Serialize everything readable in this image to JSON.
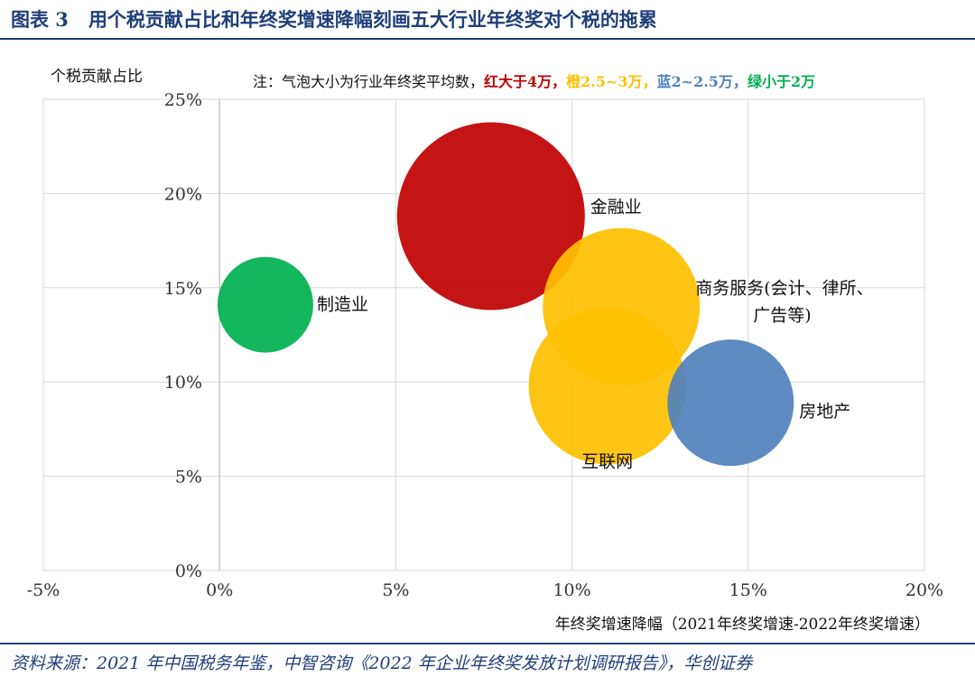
{
  "header": {
    "figure_label": "图表 3",
    "title": "用个税贡献占比和年终奖增速降幅刻画五大行业年终奖对个税的拖累"
  },
  "chart_data": {
    "type": "bubble",
    "ylabel": "个税贡献占比",
    "xlabel": "年终奖增速降幅（2021年终奖增速-2022年终奖增速）",
    "xlim": [
      -5,
      20
    ],
    "ylim": [
      0,
      25
    ],
    "x_ticks": [
      "-5%",
      "0%",
      "5%",
      "10%",
      "15%",
      "20%"
    ],
    "y_ticks": [
      "0%",
      "5%",
      "10%",
      "15%",
      "20%",
      "25%"
    ],
    "grid": true,
    "note": {
      "prefix": "注：气泡大小为行业年终奖平均数，",
      "items": [
        {
          "text": "红大于4万，",
          "color": "#c00000"
        },
        {
          "text": "橙2.5~3万，",
          "color": "#ffc000"
        },
        {
          "text": "蓝2~2.5万，",
          "color": "#4f81bd"
        },
        {
          "text": "绿小于2万",
          "color": "#00b050"
        }
      ]
    },
    "series": [
      {
        "label": "金融业",
        "x": 7.7,
        "y": 18.8,
        "size": 4,
        "color": "#c00000"
      },
      {
        "label": "商务服务(会计、律所、广告等)",
        "label_lines": [
          "商务服务(会计、律所、",
          "广告等)"
        ],
        "x": 11.4,
        "y": 14.0,
        "size": 3,
        "color": "#ffc000"
      },
      {
        "label": "互联网",
        "x": 11.0,
        "y": 9.8,
        "size": 3,
        "color": "#ffc000"
      },
      {
        "label": "房地产",
        "x": 14.5,
        "y": 8.9,
        "size": 2,
        "color": "#4f81bd"
      },
      {
        "label": "制造业",
        "x": 1.3,
        "y": 14.1,
        "size": 1,
        "color": "#00b050"
      }
    ]
  },
  "footer": {
    "source": "资料来源：2021 年中国税务年鉴，中智咨询《2022 年企业年终奖发放计划调研报告》，华创证券"
  }
}
